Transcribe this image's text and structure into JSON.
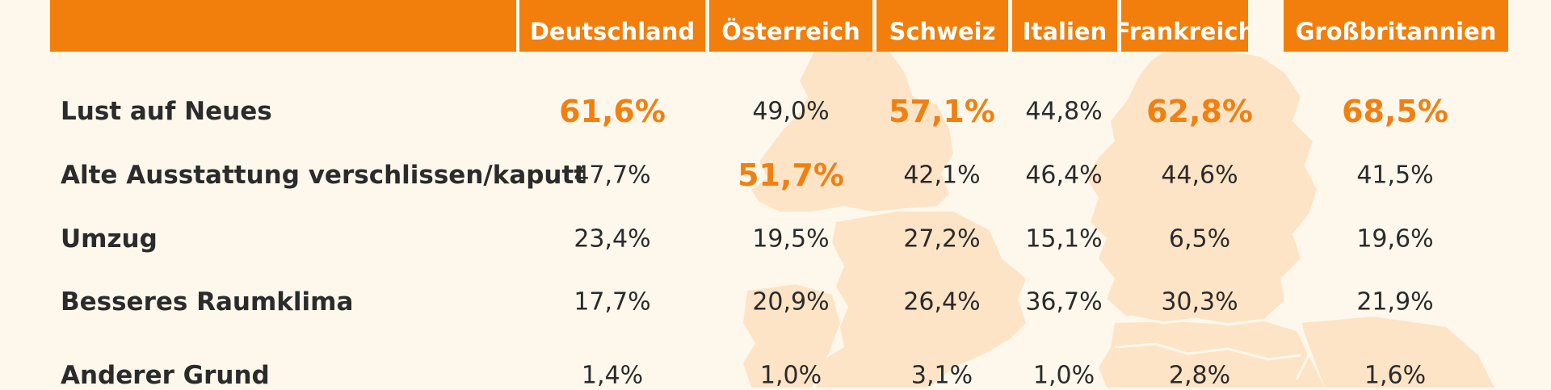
{
  "chart_data": {
    "type": "table",
    "columns": [
      "",
      "Deutschland",
      "Österreich",
      "Schweiz",
      "Italien",
      "Frankreich",
      "Großbritannien"
    ],
    "rows": [
      {
        "label": "Lust auf Neues",
        "values": [
          "61,6%",
          "49,0%",
          "57,1%",
          "44,8%",
          "62,8%",
          "68,5%"
        ],
        "highlight": [
          true,
          false,
          true,
          false,
          true,
          true
        ]
      },
      {
        "label": "Alte Ausstattung verschlissen/kaputt",
        "values": [
          "47,7%",
          "51,7%",
          "42,1%",
          "46,4%",
          "44,6%",
          "41,5%"
        ],
        "highlight": [
          false,
          true,
          false,
          false,
          false,
          false
        ]
      },
      {
        "label": "Umzug",
        "values": [
          "23,4%",
          "19,5%",
          "27,2%",
          "15,1%",
          "6,5%",
          "19,6%"
        ],
        "highlight": [
          false,
          false,
          false,
          false,
          false,
          false
        ]
      },
      {
        "label": "Besseres Raumklima",
        "values": [
          "17,7%",
          "20,9%",
          "26,4%",
          "36,7%",
          "30,3%",
          "21,9%"
        ],
        "highlight": [
          false,
          false,
          false,
          false,
          false,
          false
        ]
      },
      {
        "label": "Anderer Grund",
        "values": [
          "1,4%",
          "1,0%",
          "3,1%",
          "1,0%",
          "2,8%",
          "1,6%"
        ],
        "highlight": [
          false,
          false,
          false,
          false,
          false,
          false
        ]
      }
    ],
    "colors": {
      "header": "#f27e0c",
      "highlight": "#f08012",
      "background": "#fef8ec",
      "map": "#fde4c6"
    }
  }
}
